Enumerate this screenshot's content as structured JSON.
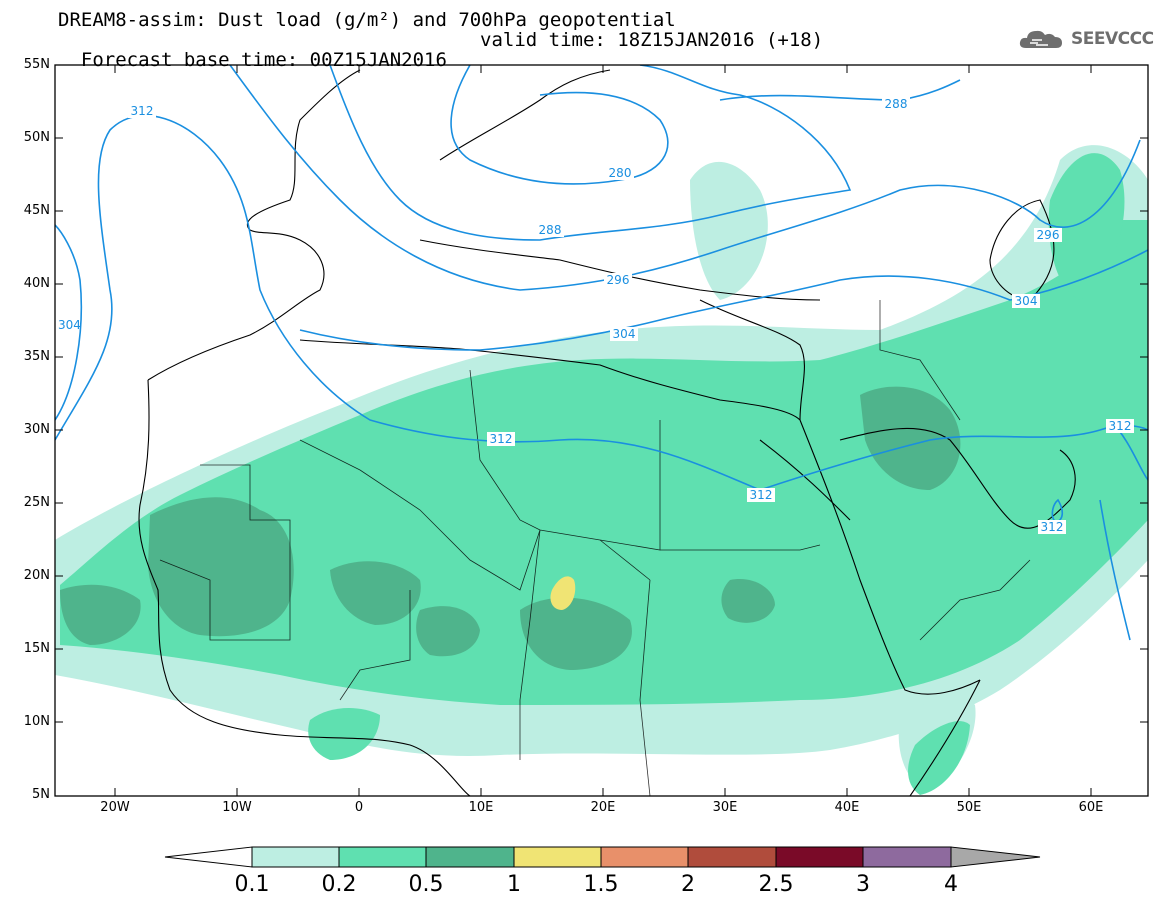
{
  "header": {
    "line1": "DREAM8-assim: Dust load (g/m²) and 700hPa geopotential",
    "line2_left": "Forecast base time: 00Z15JAN2016",
    "line2_right": "valid time: 18Z15JAN2016 (+18)"
  },
  "logo": {
    "text": "SEEVCCC",
    "icon": "cloud-icon",
    "color": "#6e6e6e"
  },
  "map": {
    "lat_labels": [
      "55N",
      "50N",
      "45N",
      "40N",
      "35N",
      "30N",
      "25N",
      "20N",
      "15N",
      "10N",
      "5N"
    ],
    "lon_labels": [
      "20W",
      "10W",
      "0",
      "10E",
      "20E",
      "30E",
      "40E",
      "50E",
      "60E"
    ],
    "contour_labels": [
      "312",
      "288",
      "280",
      "288",
      "296",
      "304",
      "296",
      "304",
      "312",
      "312",
      "312",
      "312",
      "304"
    ],
    "contour_color": "#1a8fe0"
  },
  "colorbar": {
    "labels": [
      "0.1",
      "0.2",
      "0.5",
      "1",
      "1.5",
      "2",
      "2.5",
      "3",
      "4"
    ],
    "colors": [
      "#ffffff",
      "#bdeee2",
      "#5fe0b0",
      "#4fb48c",
      "#f0e474",
      "#e8906a",
      "#b04c3c",
      "#7a0a28",
      "#8e6a9e",
      "#a8a8a8"
    ]
  }
}
